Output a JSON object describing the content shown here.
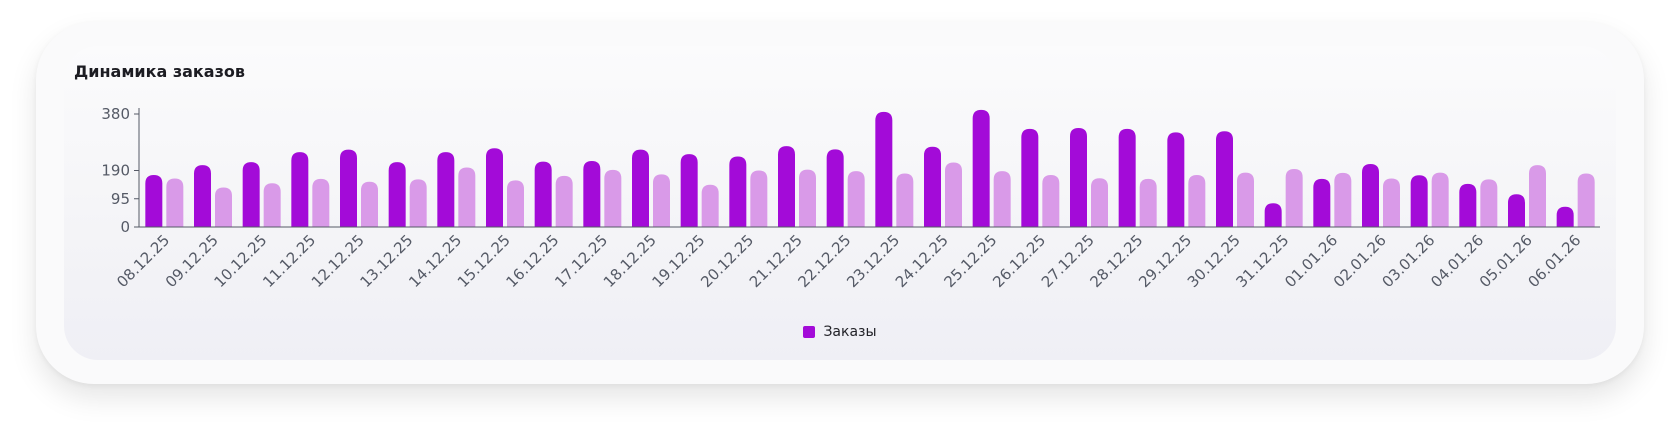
{
  "chart_data": {
    "type": "bar",
    "title": "Динамика заказов",
    "ylim": [
      0,
      380
    ],
    "yticks": [
      0,
      95,
      190,
      380
    ],
    "categories": [
      "08.12.25",
      "09.12.25",
      "10.12.25",
      "11.12.25",
      "12.12.25",
      "13.12.25",
      "14.12.25",
      "15.12.25",
      "16.12.25",
      "17.12.25",
      "18.12.25",
      "19.12.25",
      "20.12.25",
      "21.12.25",
      "22.12.25",
      "23.12.25",
      "24.12.25",
      "25.12.25",
      "26.12.25",
      "27.12.25",
      "28.12.25",
      "29.12.25",
      "30.12.25",
      "31.12.25",
      "01.01.26",
      "02.01.26",
      "03.01.26",
      "04.01.26",
      "05.01.26",
      "06.01.26"
    ],
    "series": [
      {
        "name": "Заказы",
        "color": "#a30bd8",
        "values": [
          175,
          208,
          218,
          252,
          260,
          218,
          252,
          265,
          220,
          222,
          260,
          245,
          237,
          272,
          261,
          387,
          270,
          394,
          330,
          333,
          330,
          318,
          322,
          80,
          162,
          212,
          174,
          145,
          110,
          68
        ]
      },
      {
        "color": "#d99ae8",
        "values": [
          163,
          133,
          147,
          162,
          152,
          160,
          200,
          157,
          172,
          192,
          177,
          142,
          190,
          193,
          188,
          180,
          217,
          188,
          175,
          164,
          162,
          175,
          183,
          195,
          182,
          163,
          183,
          160,
          208,
          180
        ]
      }
    ],
    "legend": {
      "position": "bottom",
      "items": [
        {
          "label": "Заказы",
          "color": "#a30bd8"
        }
      ]
    },
    "grid": false
  }
}
